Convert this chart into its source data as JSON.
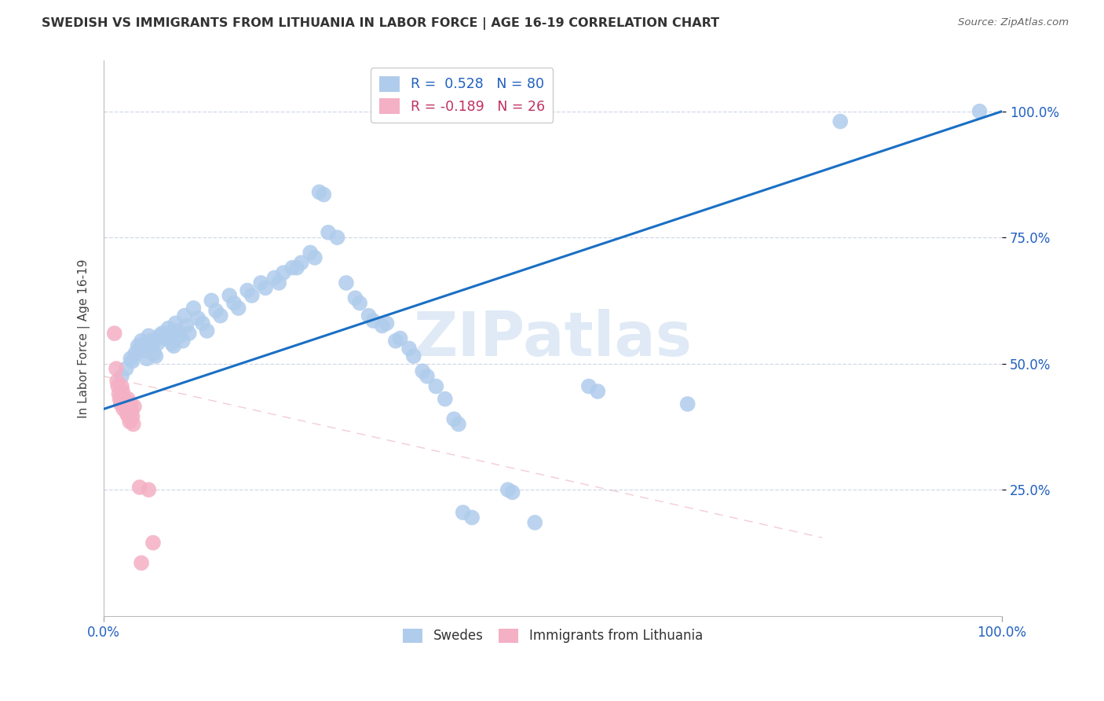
{
  "title": "SWEDISH VS IMMIGRANTS FROM LITHUANIA IN LABOR FORCE | AGE 16-19 CORRELATION CHART",
  "source": "Source: ZipAtlas.com",
  "ylabel": "In Labor Force | Age 16-19",
  "watermark": "ZIPatlas",
  "xmin": 0.0,
  "xmax": 1.0,
  "ymin": 0.0,
  "ymax": 1.1,
  "xtick_positions": [
    0.0,
    1.0
  ],
  "xtick_labels": [
    "0.0%",
    "100.0%"
  ],
  "ytick_positions": [
    0.25,
    0.5,
    0.75,
    1.0
  ],
  "ytick_labels": [
    "25.0%",
    "50.0%",
    "75.0%",
    "100.0%"
  ],
  "blue_color": "#b0ccec",
  "pink_color": "#f4b0c4",
  "blue_line_color": "#1a6fc4",
  "pink_line_color": "#e08090",
  "grid_color": "#d0d8e8",
  "background_color": "#ffffff",
  "blue_scatter": [
    [
      0.02,
      0.475
    ],
    [
      0.025,
      0.49
    ],
    [
      0.03,
      0.51
    ],
    [
      0.032,
      0.505
    ],
    [
      0.035,
      0.52
    ],
    [
      0.038,
      0.535
    ],
    [
      0.04,
      0.53
    ],
    [
      0.042,
      0.545
    ],
    [
      0.044,
      0.538
    ],
    [
      0.046,
      0.525
    ],
    [
      0.048,
      0.51
    ],
    [
      0.05,
      0.555
    ],
    [
      0.052,
      0.545
    ],
    [
      0.054,
      0.535
    ],
    [
      0.056,
      0.52
    ],
    [
      0.058,
      0.515
    ],
    [
      0.06,
      0.54
    ],
    [
      0.062,
      0.555
    ],
    [
      0.065,
      0.56
    ],
    [
      0.068,
      0.55
    ],
    [
      0.07,
      0.56
    ],
    [
      0.072,
      0.57
    ],
    [
      0.074,
      0.555
    ],
    [
      0.076,
      0.54
    ],
    [
      0.078,
      0.535
    ],
    [
      0.08,
      0.58
    ],
    [
      0.082,
      0.565
    ],
    [
      0.085,
      0.555
    ],
    [
      0.088,
      0.545
    ],
    [
      0.09,
      0.595
    ],
    [
      0.092,
      0.575
    ],
    [
      0.095,
      0.56
    ],
    [
      0.1,
      0.61
    ],
    [
      0.105,
      0.59
    ],
    [
      0.11,
      0.58
    ],
    [
      0.115,
      0.565
    ],
    [
      0.12,
      0.625
    ],
    [
      0.125,
      0.605
    ],
    [
      0.13,
      0.595
    ],
    [
      0.14,
      0.635
    ],
    [
      0.145,
      0.62
    ],
    [
      0.15,
      0.61
    ],
    [
      0.16,
      0.645
    ],
    [
      0.165,
      0.635
    ],
    [
      0.175,
      0.66
    ],
    [
      0.18,
      0.65
    ],
    [
      0.19,
      0.67
    ],
    [
      0.195,
      0.66
    ],
    [
      0.2,
      0.68
    ],
    [
      0.21,
      0.69
    ],
    [
      0.215,
      0.69
    ],
    [
      0.22,
      0.7
    ],
    [
      0.23,
      0.72
    ],
    [
      0.235,
      0.71
    ],
    [
      0.24,
      0.84
    ],
    [
      0.245,
      0.835
    ],
    [
      0.25,
      0.76
    ],
    [
      0.26,
      0.75
    ],
    [
      0.27,
      0.66
    ],
    [
      0.28,
      0.63
    ],
    [
      0.285,
      0.62
    ],
    [
      0.295,
      0.595
    ],
    [
      0.3,
      0.585
    ],
    [
      0.31,
      0.575
    ],
    [
      0.315,
      0.58
    ],
    [
      0.325,
      0.545
    ],
    [
      0.33,
      0.55
    ],
    [
      0.34,
      0.53
    ],
    [
      0.345,
      0.515
    ],
    [
      0.355,
      0.485
    ],
    [
      0.36,
      0.475
    ],
    [
      0.37,
      0.455
    ],
    [
      0.38,
      0.43
    ],
    [
      0.39,
      0.39
    ],
    [
      0.395,
      0.38
    ],
    [
      0.4,
      0.205
    ],
    [
      0.41,
      0.195
    ],
    [
      0.45,
      0.25
    ],
    [
      0.455,
      0.245
    ],
    [
      0.48,
      0.185
    ],
    [
      0.54,
      0.455
    ],
    [
      0.55,
      0.445
    ],
    [
      0.65,
      0.42
    ],
    [
      0.82,
      0.98
    ],
    [
      0.975,
      1.0
    ]
  ],
  "pink_scatter": [
    [
      0.012,
      0.56
    ],
    [
      0.014,
      0.49
    ],
    [
      0.015,
      0.465
    ],
    [
      0.016,
      0.455
    ],
    [
      0.017,
      0.44
    ],
    [
      0.018,
      0.43
    ],
    [
      0.019,
      0.42
    ],
    [
      0.02,
      0.455
    ],
    [
      0.021,
      0.445
    ],
    [
      0.022,
      0.41
    ],
    [
      0.023,
      0.43
    ],
    [
      0.024,
      0.42
    ],
    [
      0.025,
      0.41
    ],
    [
      0.026,
      0.4
    ],
    [
      0.027,
      0.43
    ],
    [
      0.028,
      0.395
    ],
    [
      0.029,
      0.385
    ],
    [
      0.03,
      0.42
    ],
    [
      0.031,
      0.405
    ],
    [
      0.032,
      0.395
    ],
    [
      0.033,
      0.38
    ],
    [
      0.034,
      0.415
    ],
    [
      0.04,
      0.255
    ],
    [
      0.042,
      0.105
    ],
    [
      0.05,
      0.25
    ],
    [
      0.055,
      0.145
    ]
  ],
  "blue_trend_x": [
    0.0,
    1.0
  ],
  "blue_trend_y": [
    0.41,
    1.0
  ],
  "pink_trend_x": [
    0.0,
    0.8
  ],
  "pink_trend_y": [
    0.475,
    0.155
  ]
}
